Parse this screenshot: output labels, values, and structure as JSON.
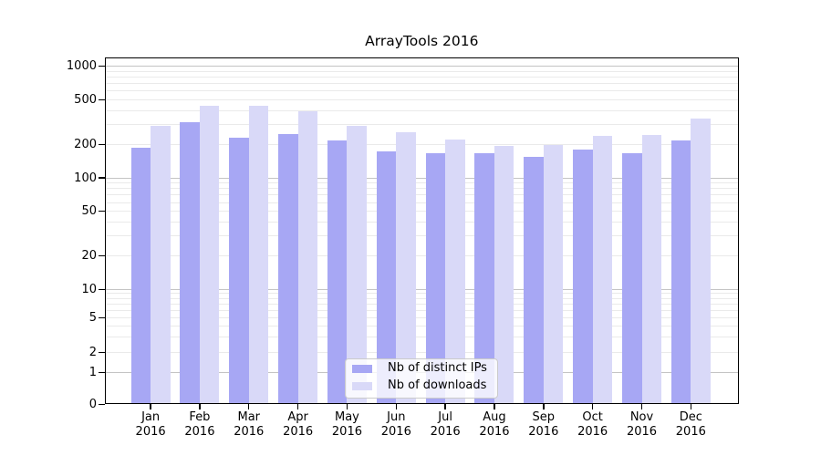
{
  "title": "ArrayTools 2016",
  "chart_data": {
    "type": "bar",
    "title": "ArrayTools 2016",
    "categories": [
      "Jan",
      "Feb",
      "Mar",
      "Apr",
      "May",
      "Jun",
      "Jul",
      "Aug",
      "Sep",
      "Oct",
      "Nov",
      "Dec"
    ],
    "x_year_label": "2016",
    "series": [
      {
        "name": "Nb of distinct IPs",
        "color": "#a7a7f4",
        "values": [
          187,
          314,
          229,
          248,
          215,
          173,
          165,
          167,
          155,
          178,
          167,
          215
        ]
      },
      {
        "name": "Nb of downloads",
        "color": "#d9d9f8",
        "values": [
          294,
          443,
          441,
          398,
          293,
          258,
          219,
          193,
          197,
          236,
          241,
          340
        ]
      }
    ],
    "yscale": "symlog",
    "ylim": [
      0,
      1000
    ],
    "yticks": [
      0,
      1,
      2,
      5,
      10,
      20,
      50,
      100,
      200,
      500,
      1000
    ],
    "ytick_labels": [
      "0",
      "1",
      "2",
      "5",
      "10",
      "20",
      "50",
      "100",
      "200",
      "500",
      "1000"
    ],
    "grid": "on",
    "legend_position": "lower center"
  },
  "colors": {
    "grid_major": "#c4c4c4",
    "grid_minor": "#eaeaea",
    "axis": "#000000",
    "background": "#ffffff"
  }
}
